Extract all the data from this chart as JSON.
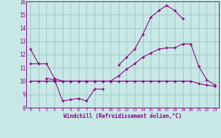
{
  "x": [
    0,
    1,
    2,
    3,
    4,
    5,
    6,
    7,
    8,
    9,
    10,
    11,
    12,
    13,
    14,
    15,
    16,
    17,
    18,
    19,
    20,
    21,
    22,
    23
  ],
  "line1": [
    12.4,
    11.3,
    null,
    null,
    null,
    null,
    null,
    null,
    null,
    null,
    null,
    11.2,
    11.8,
    12.4,
    13.5,
    14.8,
    15.3,
    15.7,
    15.3,
    14.7,
    null,
    null,
    null,
    null
  ],
  "line2": [
    null,
    null,
    10.2,
    10.1,
    8.5,
    8.6,
    8.7,
    8.5,
    9.4,
    9.4,
    null,
    null,
    null,
    null,
    null,
    null,
    null,
    null,
    null,
    null,
    null,
    null,
    null,
    null
  ],
  "line3": [
    11.3,
    11.3,
    11.3,
    10.2,
    10.0,
    10.0,
    10.0,
    10.0,
    10.0,
    10.0,
    10.0,
    10.4,
    10.9,
    11.3,
    11.8,
    12.1,
    12.4,
    12.5,
    12.5,
    12.8,
    12.8,
    11.1,
    10.1,
    9.7
  ],
  "line4": [
    10.0,
    10.0,
    10.0,
    10.0,
    10.0,
    10.0,
    10.0,
    10.0,
    10.0,
    10.0,
    10.0,
    10.0,
    10.0,
    10.0,
    10.0,
    10.0,
    10.0,
    10.0,
    10.0,
    10.0,
    10.0,
    9.8,
    9.7,
    9.6
  ],
  "color": "#8b008b",
  "bg_color": "#c8e8e5",
  "grid_color": "#a0c8c5",
  "xlabel": "Windchill (Refroidissement éolien,°C)",
  "ylim": [
    8,
    16
  ],
  "xlim": [
    -0.5,
    23.5
  ],
  "yticks": [
    8,
    9,
    10,
    11,
    12,
    13,
    14,
    15,
    16
  ],
  "xticks": [
    0,
    1,
    2,
    3,
    4,
    5,
    6,
    7,
    8,
    9,
    10,
    11,
    12,
    13,
    14,
    15,
    16,
    17,
    18,
    19,
    20,
    21,
    22,
    23
  ]
}
